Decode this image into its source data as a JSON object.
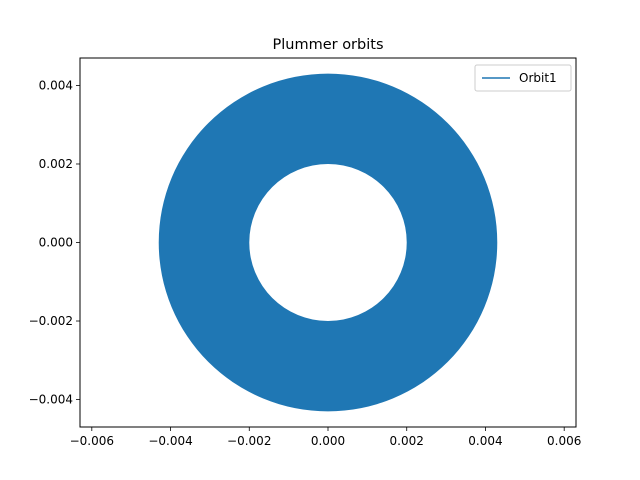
{
  "chart_data": {
    "type": "line",
    "title": "Plummer orbits",
    "xlabel": "",
    "ylabel": "",
    "xlim": [
      -0.0063,
      0.0063
    ],
    "ylim": [
      -0.0047,
      0.0047
    ],
    "xticks": [
      -0.006,
      -0.004,
      -0.002,
      0.0,
      0.002,
      0.004,
      0.006
    ],
    "xtick_labels": [
      "−0.006",
      "−0.004",
      "−0.002",
      "0.000",
      "0.002",
      "0.004",
      "0.006"
    ],
    "yticks": [
      -0.004,
      -0.002,
      0.0,
      0.002,
      0.004
    ],
    "ytick_labels": [
      "−0.004",
      "−0.002",
      "0.000",
      "0.002",
      "0.004"
    ],
    "grid": false,
    "legend_position": "top-right",
    "series": [
      {
        "name": "Orbit1",
        "color": "#1f77b4",
        "shape": "filled annulus (rosette orbit)",
        "outer_radius": 0.0043,
        "inner_radius": 0.002,
        "center": [
          0.0,
          0.0
        ]
      }
    ]
  }
}
